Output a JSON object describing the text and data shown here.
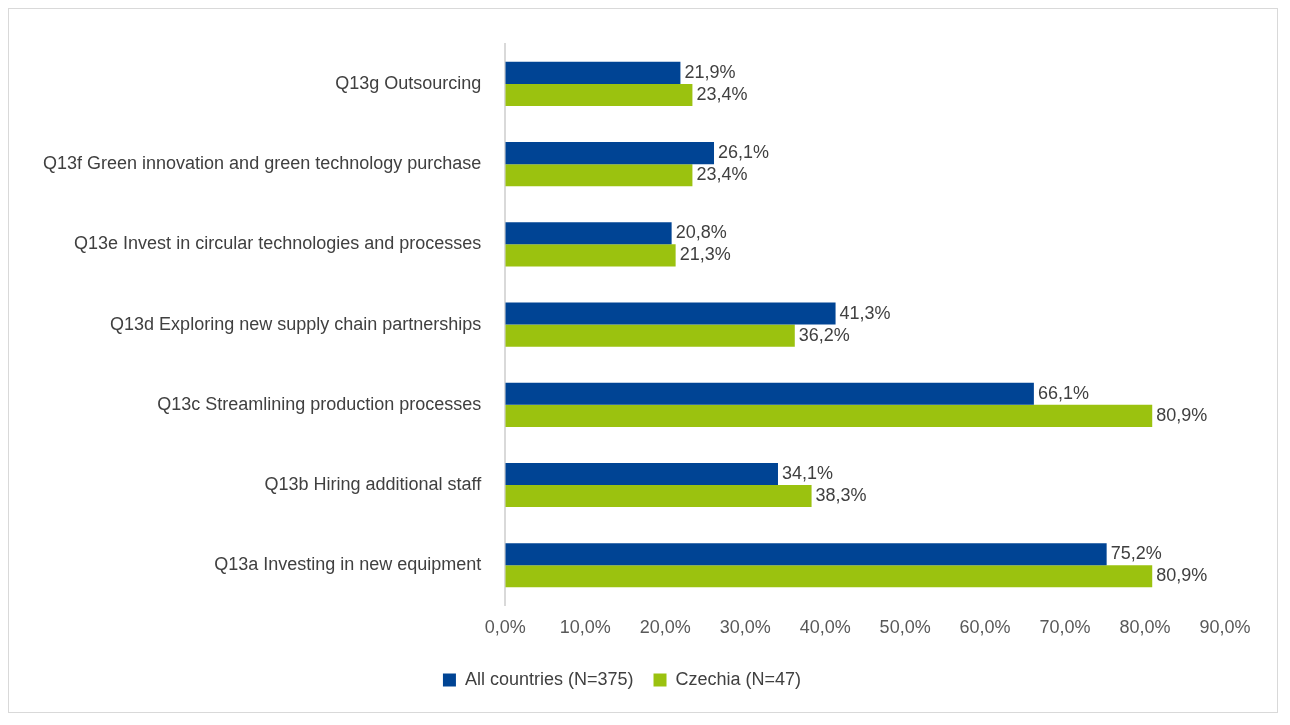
{
  "chart_data": {
    "type": "bar",
    "orientation": "horizontal",
    "categories": [
      "Q13g Outsourcing",
      "Q13f Green innovation and green technology purchase",
      "Q13e Invest in circular technologies and processes",
      "Q13d Exploring new supply chain partnerships",
      "Q13c Streamlining production processes",
      "Q13b Hiring additional staff",
      "Q13a Investing in new equipment"
    ],
    "series": [
      {
        "name": "All countries (N=375)",
        "color": "#004494",
        "values": [
          21.9,
          26.1,
          20.8,
          41.3,
          66.1,
          34.1,
          75.2
        ],
        "value_labels": [
          "21,9%",
          "26,1%",
          "20,8%",
          "41,3%",
          "66,1%",
          "34,1%",
          "75,2%"
        ]
      },
      {
        "name": "Czechia (N=47)",
        "color": "#9bc20f",
        "values": [
          23.4,
          23.4,
          21.3,
          36.2,
          80.9,
          38.3,
          80.9
        ],
        "value_labels": [
          "23,4%",
          "23,4%",
          "21,3%",
          "36,2%",
          "80,9%",
          "38,3%",
          "80,9%"
        ]
      }
    ],
    "xlim": [
      0,
      90
    ],
    "xticks": [
      {
        "value": 0,
        "label": "0,0%"
      },
      {
        "value": 10,
        "label": "10,0%"
      },
      {
        "value": 20,
        "label": "20,0%"
      },
      {
        "value": 30,
        "label": "30,0%"
      },
      {
        "value": 40,
        "label": "40,0%"
      },
      {
        "value": 50,
        "label": "50,0%"
      },
      {
        "value": 60,
        "label": "60,0%"
      },
      {
        "value": 70,
        "label": "70,0%"
      },
      {
        "value": 80,
        "label": "80,0%"
      },
      {
        "value": 90,
        "label": "90,0%"
      }
    ],
    "grid": false,
    "legend": "bottom"
  }
}
